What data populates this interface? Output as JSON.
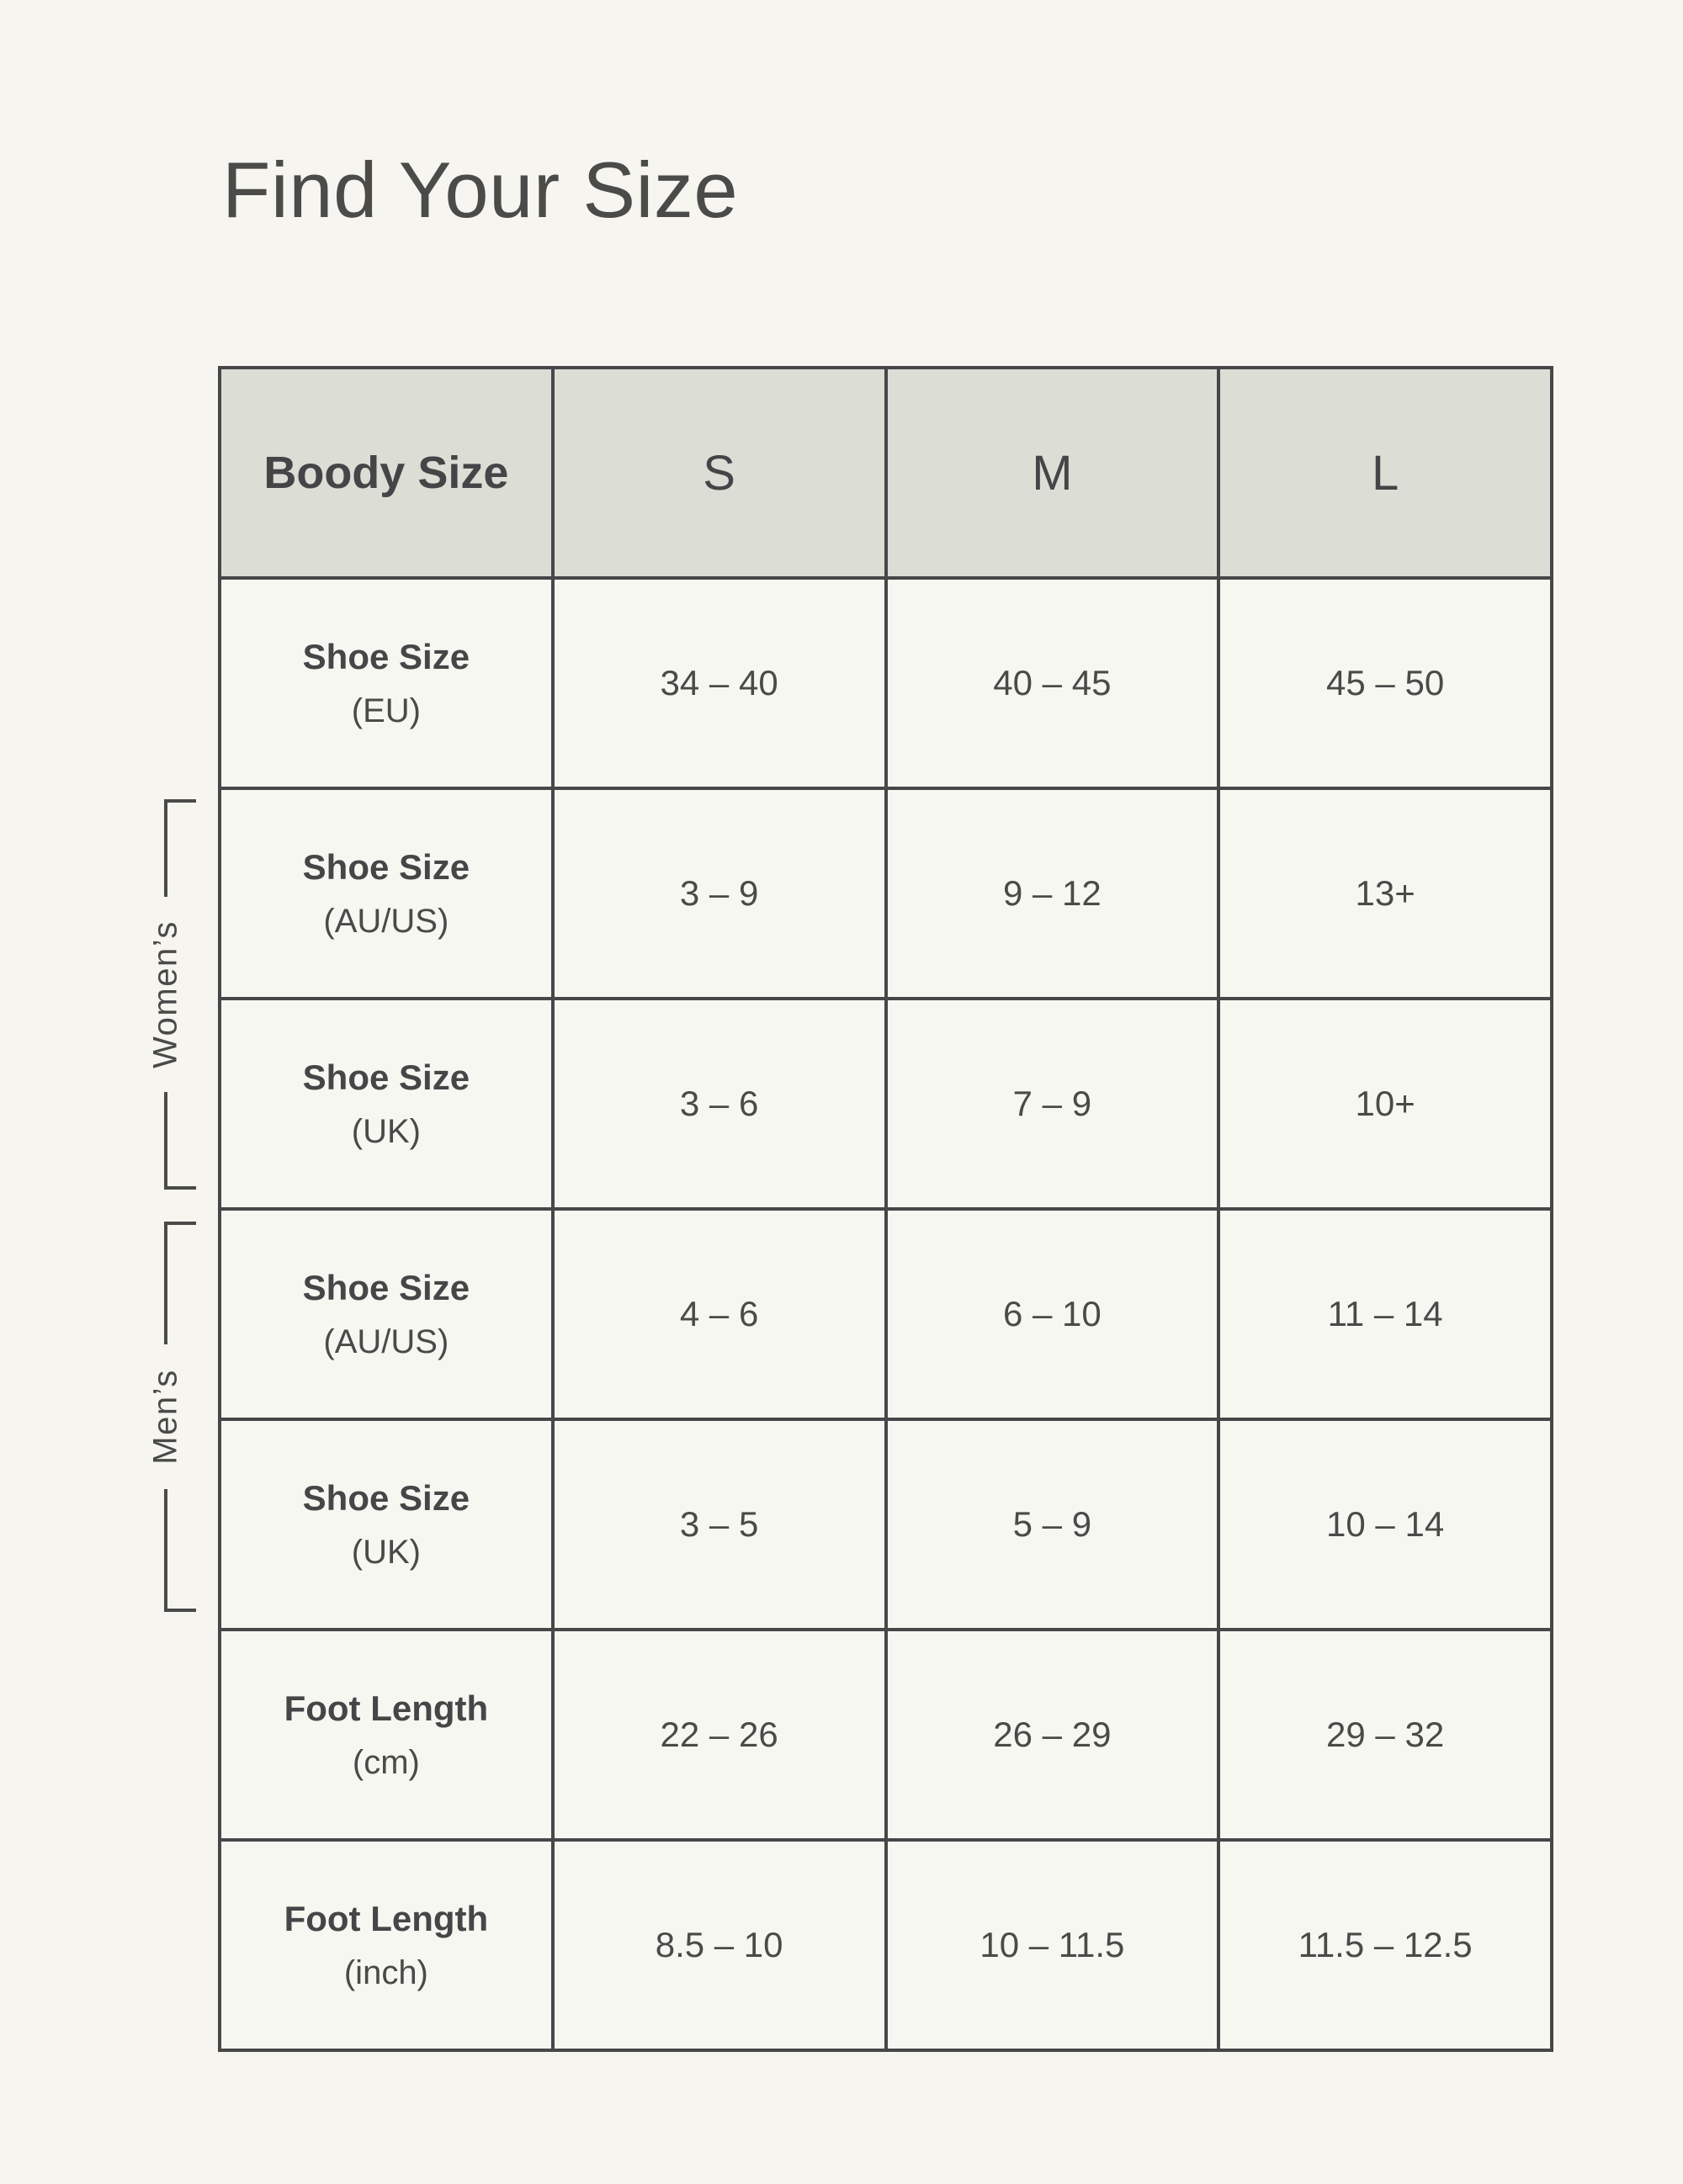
{
  "page": {
    "title": "Find Your Size"
  },
  "table": {
    "header": {
      "label": "Boody Size",
      "sizes": [
        "S",
        "M",
        "L"
      ]
    },
    "rows": [
      {
        "label": "Shoe Size",
        "unit": "(EU)",
        "group": "",
        "values": [
          "34 – 40",
          "40 – 45",
          "45 – 50"
        ]
      },
      {
        "label": "Shoe Size",
        "unit": "(AU/US)",
        "group": "womens",
        "values": [
          "3 – 9",
          "9 – 12",
          "13+"
        ]
      },
      {
        "label": "Shoe Size",
        "unit": "(UK)",
        "group": "womens",
        "values": [
          "3 – 6",
          "7 – 9",
          "10+"
        ]
      },
      {
        "label": "Shoe Size",
        "unit": "(AU/US)",
        "group": "mens",
        "values": [
          "4 – 6",
          "6 – 10",
          "11 – 14"
        ]
      },
      {
        "label": "Shoe Size",
        "unit": "(UK)",
        "group": "mens",
        "values": [
          "3 – 5",
          "5 – 9",
          "10 – 14"
        ]
      },
      {
        "label": "Foot Length",
        "unit": "(cm)",
        "group": "",
        "values": [
          "22 – 26",
          "26 – 29",
          "29 – 32"
        ]
      },
      {
        "label": "Foot Length",
        "unit": "(inch)",
        "group": "",
        "values": [
          "8.5 – 10",
          "10 – 11.5",
          "11.5 – 12.5"
        ]
      }
    ]
  },
  "side_labels": {
    "womens": "Women’s",
    "mens": "Men’s"
  },
  "colors": {
    "page_background": "#F6F5EF",
    "header_background": "#DCDDD5",
    "cell_background": "#F7F7F1",
    "border": "#474749",
    "text": "#4A4A49"
  }
}
